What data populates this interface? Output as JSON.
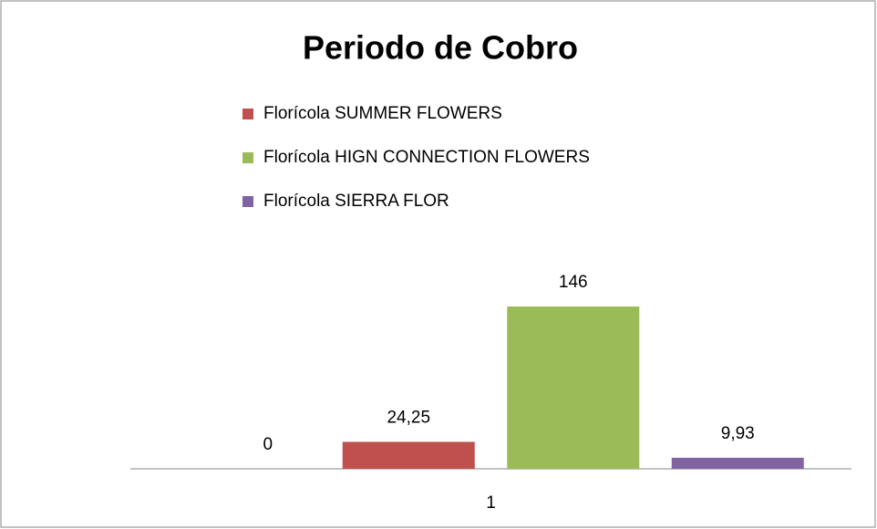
{
  "chart_data": {
    "type": "bar",
    "title": "Periodo de Cobro",
    "categories": [
      "1"
    ],
    "series": [
      {
        "values": [
          0
        ]
      },
      {
        "name": "Florícola SUMMER FLOWERS",
        "color": "#c0504d",
        "values": [
          24.25
        ],
        "value_labels": [
          "24,25"
        ]
      },
      {
        "name": "Florícola HIGN CONNECTION FLOWERS",
        "color": "#9bbb59",
        "values": [
          146
        ]
      },
      {
        "name": "Florícola SIERRA FLOR",
        "color": "#8064a2",
        "values": [
          9.93
        ],
        "value_labels": [
          "9,93"
        ]
      }
    ],
    "ylim": [
      0,
      160
    ],
    "legend": "top"
  }
}
